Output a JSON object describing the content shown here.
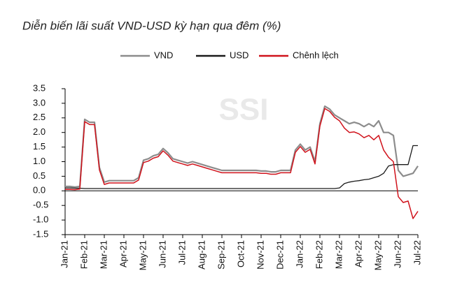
{
  "chart_data": {
    "type": "line",
    "title": "Diễn biến lãi suất VND-USD kỳ hạn qua đêm (%)",
    "watermark": "SSI",
    "categories": [
      "Jan-21",
      null,
      null,
      null,
      "Feb-21",
      null,
      null,
      null,
      "Mar-21",
      null,
      null,
      null,
      "Apr-21",
      null,
      null,
      null,
      "May-21",
      null,
      null,
      null,
      "Jun-21",
      null,
      null,
      null,
      "Jul-21",
      null,
      null,
      null,
      "Aug-21",
      null,
      null,
      null,
      "Sep-21",
      null,
      null,
      null,
      "Oct-21",
      null,
      null,
      null,
      "Nov-21",
      null,
      null,
      null,
      "Dec-21",
      null,
      null,
      null,
      "Jan-22",
      null,
      null,
      null,
      "Feb-22",
      null,
      null,
      null,
      "Mar-22",
      null,
      null,
      null,
      "Apr-22",
      null,
      null,
      null,
      "May-22",
      null,
      null,
      null,
      "Jun-22",
      null,
      null,
      null,
      "Jul-22"
    ],
    "series": [
      {
        "name": "VND",
        "color": "#8c8c8c",
        "width": 2.2,
        "values": [
          0.15,
          0.15,
          0.13,
          0.15,
          2.45,
          2.35,
          2.35,
          0.8,
          0.3,
          0.35,
          0.35,
          0.35,
          0.35,
          0.35,
          0.35,
          0.45,
          1.05,
          1.1,
          1.2,
          1.25,
          1.45,
          1.3,
          1.1,
          1.05,
          1.0,
          0.95,
          1.0,
          0.95,
          0.9,
          0.85,
          0.8,
          0.75,
          0.7,
          0.7,
          0.7,
          0.7,
          0.7,
          0.7,
          0.7,
          0.7,
          0.68,
          0.68,
          0.65,
          0.65,
          0.7,
          0.7,
          0.7,
          1.4,
          1.6,
          1.4,
          1.5,
          1.0,
          2.3,
          2.9,
          2.8,
          2.6,
          2.5,
          2.4,
          2.3,
          2.35,
          2.3,
          2.2,
          2.3,
          2.2,
          2.4,
          2.0,
          2.0,
          1.9,
          0.7,
          0.5,
          0.55,
          0.6,
          0.85
        ]
      },
      {
        "name": "USD",
        "color": "#1a1a1a",
        "width": 1.3,
        "values": [
          0.1,
          0.1,
          0.09,
          0.09,
          0.08,
          0.08,
          0.08,
          0.08,
          0.08,
          0.08,
          0.08,
          0.08,
          0.08,
          0.08,
          0.08,
          0.08,
          0.08,
          0.08,
          0.08,
          0.08,
          0.08,
          0.08,
          0.08,
          0.08,
          0.08,
          0.08,
          0.08,
          0.08,
          0.08,
          0.08,
          0.08,
          0.08,
          0.08,
          0.08,
          0.08,
          0.08,
          0.08,
          0.08,
          0.08,
          0.08,
          0.08,
          0.08,
          0.08,
          0.08,
          0.08,
          0.08,
          0.08,
          0.08,
          0.08,
          0.08,
          0.08,
          0.08,
          0.08,
          0.08,
          0.08,
          0.08,
          0.1,
          0.25,
          0.3,
          0.33,
          0.35,
          0.38,
          0.4,
          0.45,
          0.5,
          0.6,
          0.85,
          0.9,
          0.9,
          0.9,
          0.9,
          1.55,
          1.55
        ]
      },
      {
        "name": "Chênh lệch",
        "color": "#d0121b",
        "width": 1.5,
        "values": [
          0.05,
          0.05,
          0.04,
          0.06,
          2.37,
          2.27,
          2.27,
          0.72,
          0.22,
          0.27,
          0.27,
          0.27,
          0.27,
          0.27,
          0.27,
          0.37,
          0.97,
          1.02,
          1.12,
          1.17,
          1.37,
          1.22,
          1.02,
          0.97,
          0.92,
          0.87,
          0.92,
          0.87,
          0.82,
          0.77,
          0.72,
          0.67,
          0.62,
          0.62,
          0.62,
          0.62,
          0.62,
          0.62,
          0.62,
          0.62,
          0.6,
          0.6,
          0.57,
          0.57,
          0.62,
          0.62,
          0.62,
          1.32,
          1.52,
          1.32,
          1.42,
          0.92,
          2.22,
          2.82,
          2.72,
          2.52,
          2.4,
          2.15,
          2.0,
          2.02,
          1.95,
          1.82,
          1.9,
          1.75,
          1.9,
          1.4,
          1.15,
          1.0,
          -0.2,
          -0.4,
          -0.35,
          -0.95,
          -0.7
        ]
      }
    ],
    "ylim": [
      -1.5,
      3.5
    ],
    "yticks": [
      {
        "value": 3.5,
        "label": "3.5"
      },
      {
        "value": 3,
        "label": "3.0"
      },
      {
        "value": 2.5,
        "label": "2.5"
      },
      {
        "value": 2,
        "label": "2.0"
      },
      {
        "value": 1.5,
        "label": "1.5"
      },
      {
        "value": 1,
        "label": "1.0"
      },
      {
        "value": 0.5,
        "label": "0.5"
      },
      {
        "value": 0,
        "label": "0.0"
      },
      {
        "value": -0.5,
        "label": "-0.5"
      },
      {
        "value": -1,
        "label": "-1.0"
      },
      {
        "value": -1.5,
        "label": "-1.5"
      }
    ],
    "legend": "top",
    "grid": false
  }
}
